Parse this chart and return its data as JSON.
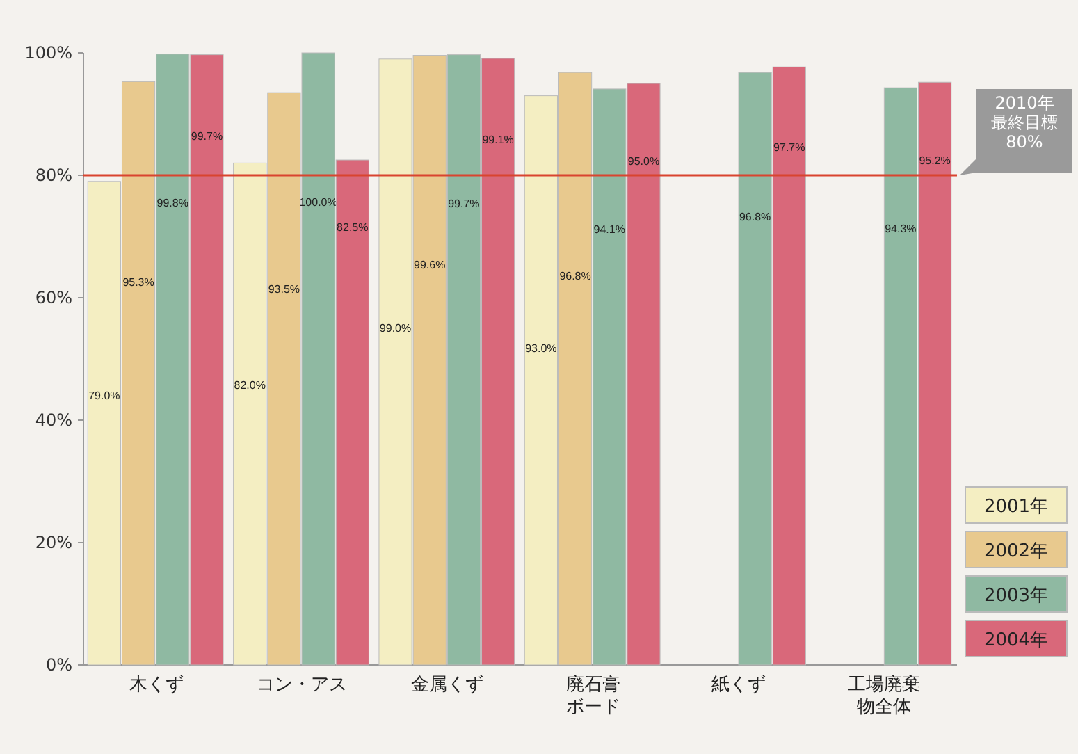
{
  "chart_data": {
    "type": "bar",
    "categories": [
      "木くず",
      "コン・アス",
      "金属くず",
      "廃石膏ボード",
      "紙くず",
      "工場廃棄物全体"
    ],
    "series": [
      {
        "name": "2001年",
        "color": "#f4eec2",
        "values": [
          79.0,
          82.0,
          99.0,
          93.0,
          null,
          null
        ],
        "value_labels": [
          "79.0%",
          "82.0%",
          "99.0%",
          "93.0%",
          null,
          null
        ]
      },
      {
        "name": "2002年",
        "color": "#e8c98e",
        "values": [
          95.3,
          93.5,
          99.6,
          96.8,
          null,
          null
        ],
        "value_labels": [
          "95.3%",
          "93.5%",
          "99.6%",
          "96.8%",
          null,
          null
        ]
      },
      {
        "name": "2003年",
        "color": "#8fb9a2",
        "values": [
          99.8,
          100.0,
          99.7,
          94.1,
          96.8,
          94.3
        ],
        "value_labels": [
          "99.8%",
          "100.0%",
          "99.7%",
          "94.1%",
          "96.8%",
          "94.3%"
        ]
      },
      {
        "name": "2004年",
        "color": "#d9687a",
        "values": [
          99.7,
          82.5,
          99.1,
          95.0,
          97.7,
          95.2
        ],
        "value_labels": [
          "99.7%",
          "82.5%",
          "99.1%",
          "95.0%",
          "97.7%",
          "95.2%"
        ]
      }
    ],
    "ylim": [
      0,
      100
    ],
    "yticks": [
      {
        "value": 0,
        "label": "0%"
      },
      {
        "value": 20,
        "label": "20%"
      },
      {
        "value": 40,
        "label": "40%"
      },
      {
        "value": 60,
        "label": "60%"
      },
      {
        "value": 80,
        "label": "80%"
      },
      {
        "value": 100,
        "label": "100%"
      }
    ],
    "ref_lines": [
      {
        "axis": "y",
        "value": 80,
        "label": "2010年最終目標80%",
        "color": "#d9442f"
      }
    ],
    "legend": "bottom right"
  }
}
